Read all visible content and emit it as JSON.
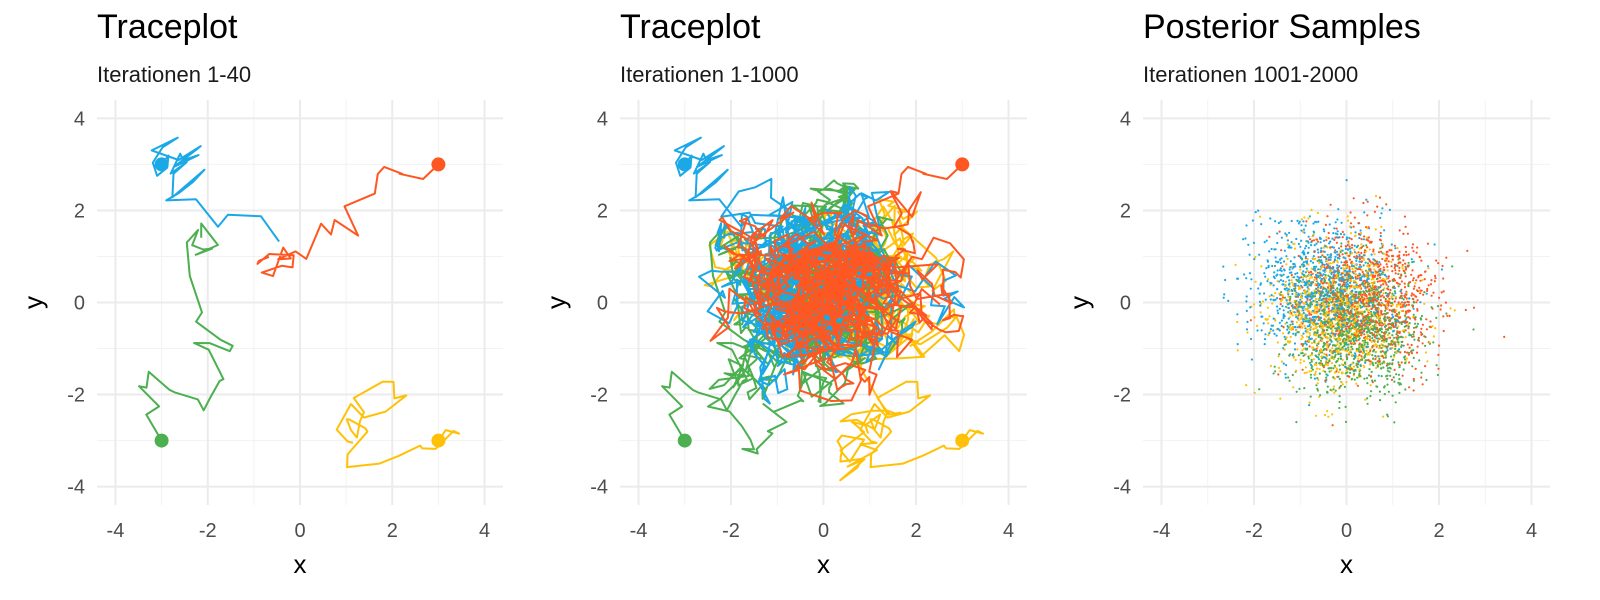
{
  "chart_data": [
    {
      "type": "line",
      "title": "Traceplot",
      "subtitle": "Iterationen 1-40",
      "xlabel": "x",
      "ylabel": "y",
      "xlim": [
        -4.4,
        4.4
      ],
      "ylim": [
        -4.4,
        4.4
      ],
      "xticks": [
        -4,
        -2,
        0,
        2,
        4
      ],
      "yticks": [
        -4,
        -2,
        0,
        2,
        4
      ],
      "grid": true,
      "legend": "none",
      "mode": "trace",
      "iterations": 40,
      "series": [
        {
          "color": "#1aa8e6",
          "start": [
            -3,
            3
          ],
          "seed": 11
        },
        {
          "color": "#ff5722",
          "start": [
            3,
            3
          ],
          "seed": 23
        },
        {
          "color": "#4caf50",
          "start": [
            -3,
            -3
          ],
          "seed": 37
        },
        {
          "color": "#ffc107",
          "start": [
            3,
            -3
          ],
          "seed": 41
        }
      ]
    },
    {
      "type": "line",
      "title": "Traceplot",
      "subtitle": "Iterationen 1-1000",
      "xlabel": "x",
      "ylabel": "y",
      "xlim": [
        -4.4,
        4.4
      ],
      "ylim": [
        -4.4,
        4.4
      ],
      "xticks": [
        -4,
        -2,
        0,
        2,
        4
      ],
      "yticks": [
        -4,
        -2,
        0,
        2,
        4
      ],
      "grid": true,
      "legend": "none",
      "mode": "trace",
      "iterations": 1000,
      "series": [
        {
          "color": "#ffc107",
          "start": [
            3,
            -3
          ],
          "seed": 41
        },
        {
          "color": "#4caf50",
          "start": [
            -3,
            -3
          ],
          "seed": 37
        },
        {
          "color": "#1aa8e6",
          "start": [
            -3,
            3
          ],
          "seed": 11
        },
        {
          "color": "#ff5722",
          "start": [
            3,
            3
          ],
          "seed": 23
        }
      ]
    },
    {
      "type": "scatter",
      "title": "Posterior Samples",
      "subtitle": "Iterationen 1001-2000",
      "xlabel": "x",
      "ylabel": "y",
      "xlim": [
        -4.4,
        4.4
      ],
      "ylim": [
        -4.4,
        4.4
      ],
      "xticks": [
        -4,
        -2,
        0,
        2,
        4
      ],
      "yticks": [
        -4,
        -2,
        0,
        2,
        4
      ],
      "grid": true,
      "legend": "none",
      "mode": "samples",
      "samples_per_series": 1000,
      "series": [
        {
          "color": "#1aa8e6",
          "center": [
            -0.5,
            0.3
          ],
          "spread": 0.75,
          "seed": 101
        },
        {
          "color": "#ff5722",
          "center": [
            0.4,
            0.1
          ],
          "spread": 0.75,
          "seed": 202
        },
        {
          "color": "#4caf50",
          "center": [
            0.2,
            -0.6
          ],
          "spread": 0.7,
          "seed": 303
        },
        {
          "color": "#ffc107",
          "center": [
            -0.2,
            -0.3
          ],
          "spread": 0.75,
          "seed": 404
        }
      ]
    }
  ]
}
